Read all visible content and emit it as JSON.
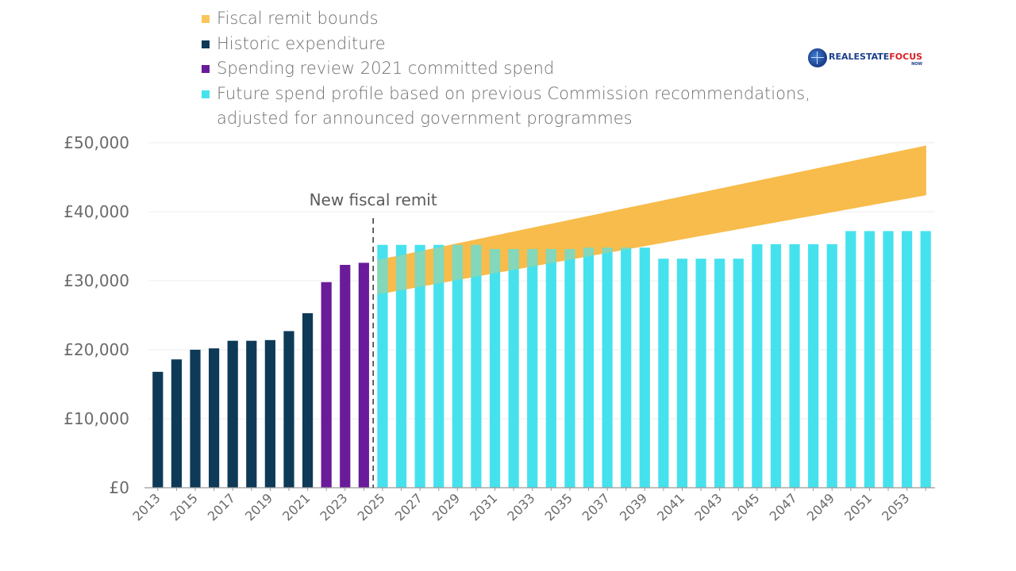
{
  "logo": {
    "text_a": "REALESTATE",
    "text_b": "FOCUS",
    "sub": "NOW",
    "colors": {
      "primary": "#1c3f8c",
      "accent": "#d71f26"
    }
  },
  "chart_data": {
    "type": "bar",
    "title": "",
    "xlabel": "",
    "ylabel": "",
    "ylim": [
      0,
      50000
    ],
    "yticks": [
      0,
      10000,
      20000,
      30000,
      40000,
      50000
    ],
    "ytick_labels": [
      "£0",
      "£10,000",
      "£20,000",
      "£30,000",
      "£40,000",
      "£50,000"
    ],
    "xtick_labels": [
      "2013",
      "2015",
      "2017",
      "2019",
      "2021",
      "2023",
      "2025",
      "2027",
      "2029",
      "2031",
      "2033",
      "2035",
      "2037",
      "2039",
      "2041",
      "2043",
      "2045",
      "2047",
      "2049",
      "2051",
      "2053"
    ],
    "categories": [
      2013,
      2014,
      2015,
      2016,
      2017,
      2018,
      2019,
      2020,
      2021,
      2022,
      2023,
      2024,
      2025,
      2026,
      2027,
      2028,
      2029,
      2030,
      2031,
      2032,
      2033,
      2034,
      2035,
      2036,
      2037,
      2038,
      2039,
      2040,
      2041,
      2042,
      2043,
      2044,
      2045,
      2046,
      2047,
      2048,
      2049,
      2050,
      2051,
      2052,
      2053,
      2054
    ],
    "grid": true,
    "legend_placement": "top",
    "legend": [
      {
        "label": "Fiscal remit bounds",
        "color": "#f8c65c"
      },
      {
        "label": "Historic expenditure",
        "color": "#0e3a57"
      },
      {
        "label": "Spending review 2021 committed spend",
        "color": "#6a1b9a"
      },
      {
        "label": "Future spend profile based on previous Commission recommendations,\nadjusted for announced government programmes",
        "color": "#45e2ee"
      }
    ],
    "series": [
      {
        "name": "Historic expenditure",
        "color": "#0e3a57",
        "x": [
          2013,
          2014,
          2015,
          2016,
          2017,
          2018,
          2019,
          2020,
          2021
        ],
        "values": [
          16800,
          18600,
          20000,
          20200,
          21300,
          21300,
          21400,
          22700,
          25300
        ]
      },
      {
        "name": "Spending review 2021 committed spend",
        "color": "#6a1b9a",
        "x": [
          2022,
          2023,
          2024
        ],
        "values": [
          29800,
          32300,
          32600
        ]
      },
      {
        "name": "Future spend profile based on previous Commission recommendations, adjusted for announced government programmes",
        "color": "#45e2ee",
        "x": [
          2025,
          2026,
          2027,
          2028,
          2029,
          2030,
          2031,
          2032,
          2033,
          2034,
          2035,
          2036,
          2037,
          2038,
          2039,
          2040,
          2041,
          2042,
          2043,
          2044,
          2045,
          2046,
          2047,
          2048,
          2049,
          2050,
          2051,
          2052,
          2053,
          2054
        ],
        "values": [
          35200,
          35200,
          35200,
          35200,
          35200,
          35200,
          34600,
          34600,
          34600,
          34600,
          34600,
          34800,
          34800,
          34800,
          34800,
          33200,
          33200,
          33200,
          33200,
          33200,
          35300,
          35300,
          35300,
          35300,
          35300,
          37200,
          37200,
          37200,
          37200,
          37200
        ]
      }
    ],
    "band": {
      "name": "Fiscal remit bounds",
      "color": "#f8c65c",
      "x": [
        2025,
        2054
      ],
      "lower": [
        28000,
        42400
      ],
      "upper": [
        33000,
        49600
      ]
    },
    "annotations": [
      {
        "text": "New fiscal remit",
        "x": 2024.5
      }
    ]
  }
}
